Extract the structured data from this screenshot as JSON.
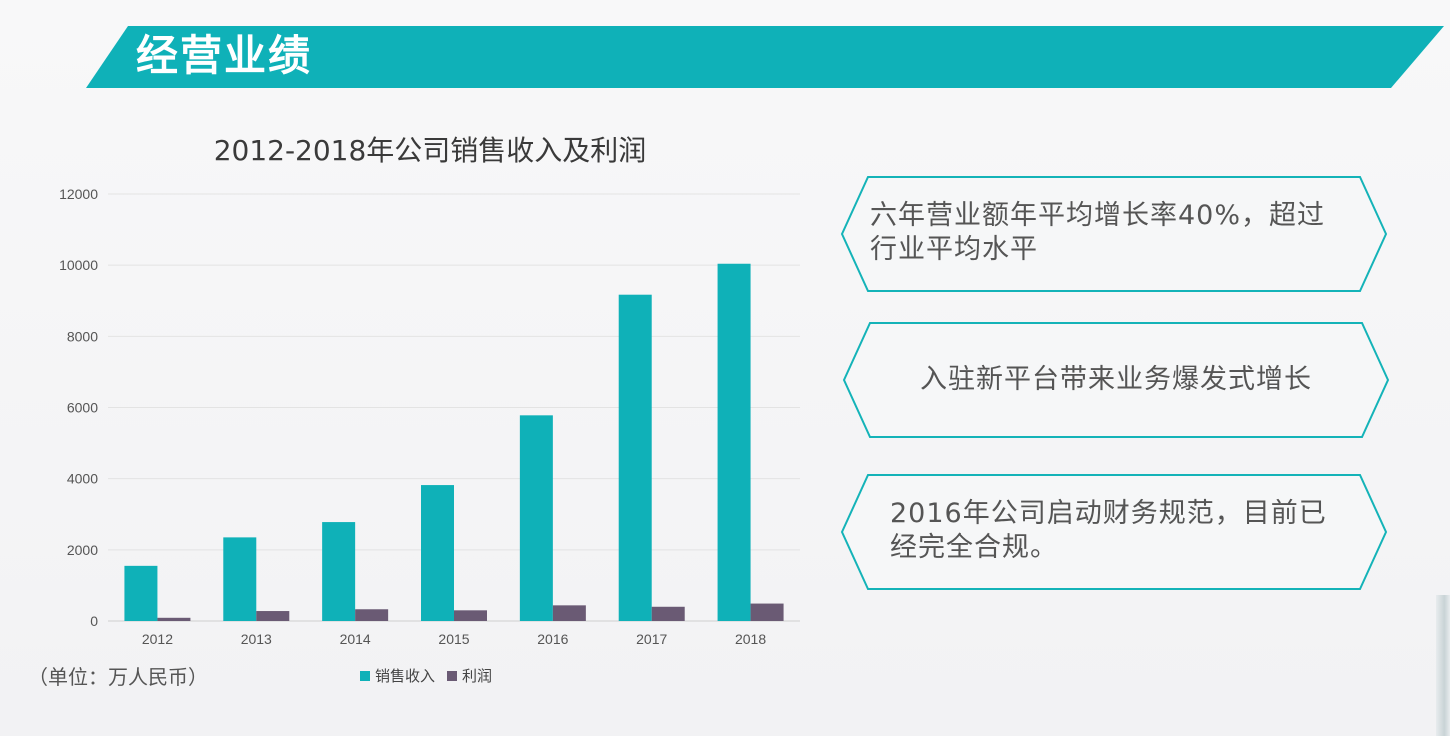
{
  "header": {
    "title": "经营业绩"
  },
  "colors": {
    "accent": "#0fb1b8",
    "profit": "#6a5a74",
    "card_border": "#14b3b8"
  },
  "chart_data": {
    "type": "bar",
    "title": "2012-2018年公司销售收入及利润",
    "categories": [
      "2012",
      "2013",
      "2014",
      "2015",
      "2016",
      "2017",
      "2018"
    ],
    "series": [
      {
        "name": "销售收入",
        "values": [
          1550,
          2350,
          2780,
          3820,
          5780,
          9170,
          10040
        ]
      },
      {
        "name": "利润",
        "values": [
          90,
          280,
          330,
          300,
          440,
          400,
          490
        ]
      }
    ],
    "ylim": [
      0,
      12000
    ],
    "yticks": [
      "0",
      "2000",
      "4000",
      "6000",
      "8000",
      "10000",
      "12000"
    ],
    "grid": true,
    "legend": "bottom",
    "unit_note": "（单位：万人民币）"
  },
  "cards": [
    {
      "text_lines": [
        "六年营业额年平均增长率40%，超过",
        "行业平均水平"
      ]
    },
    {
      "text_lines": [
        "入驻新平台带来业务爆发式增长"
      ]
    },
    {
      "text_lines": [
        "2016年公司启动财务规范，目前已",
        "经完全合规。"
      ]
    }
  ]
}
